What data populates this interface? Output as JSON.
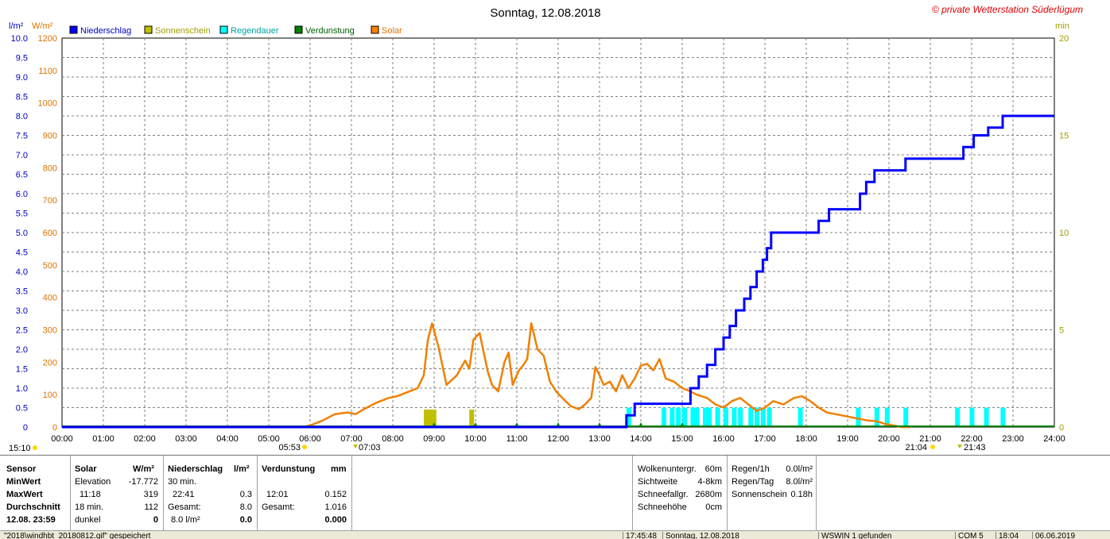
{
  "header": {
    "title": "Sonntag, 12.08.2018",
    "copyright": "© private Wetterstation Süderlügum",
    "unit_left1": "l/m²",
    "unit_left2": "W/m²",
    "unit_right": "min"
  },
  "legend": [
    {
      "label": "Niederschlag",
      "color": "#0000ff",
      "text_color": "#0000c0"
    },
    {
      "label": "Sonnenschein",
      "color": "#c0c000",
      "text_color": "#a0a000"
    },
    {
      "label": "Regendauer",
      "color": "#00ffff",
      "text_color": "#00a0a0"
    },
    {
      "label": "Verdunstung",
      "color": "#008000",
      "text_color": "#006000"
    },
    {
      "label": "Solar",
      "color": "#ff8000",
      "text_color": "#e07000"
    }
  ],
  "colors": {
    "precip": "#0000ff",
    "solar": "#f08000",
    "sunshine": "#c0c000",
    "rain_dur": "#00ffff",
    "evap": "#008000",
    "grid": "#808080",
    "axis_left1": "#0000c0",
    "axis_left2": "#e07000",
    "axis_right": "#a0a000"
  },
  "chart_data": {
    "type": "line",
    "title": "Sonntag, 12.08.2018",
    "x_ticks": [
      "00:00",
      "01:00",
      "02:00",
      "03:00",
      "04:00",
      "05:00",
      "06:00",
      "07:00",
      "08:00",
      "09:00",
      "10:00",
      "11:00",
      "12:00",
      "13:00",
      "14:00",
      "15:00",
      "16:00",
      "17:00",
      "18:00",
      "19:00",
      "20:00",
      "21:00",
      "22:00",
      "23:00",
      "24:00"
    ],
    "xlim": [
      0,
      24
    ],
    "y_left1": {
      "unit": "l/m²",
      "range": [
        0,
        10
      ],
      "ticks": [
        "0",
        "0.5",
        "1.0",
        "1.5",
        "2.0",
        "2.5",
        "3.0",
        "3.5",
        "4.0",
        "4.5",
        "5.0",
        "5.5",
        "6.0",
        "6.5",
        "7.0",
        "7.5",
        "8.0",
        "8.5",
        "9.0",
        "9.5",
        "10.0"
      ]
    },
    "y_left2": {
      "unit": "W/m²",
      "range": [
        0,
        1200
      ],
      "ticks": [
        "0",
        "100",
        "200",
        "300",
        "400",
        "500",
        "600",
        "700",
        "800",
        "900",
        "1000",
        "1100",
        "1200"
      ]
    },
    "y_right": {
      "unit": "min",
      "range": [
        0,
        20
      ],
      "ticks": [
        "0",
        "5",
        "10",
        "15",
        "20"
      ]
    },
    "grid": true,
    "legend_placement": "top-left",
    "series": [
      {
        "name": "Niederschlag",
        "axis": "left1",
        "step": true,
        "x": [
          0,
          13.65,
          13.85,
          15.2,
          15.4,
          15.6,
          15.8,
          16.0,
          16.15,
          16.3,
          16.5,
          16.65,
          16.8,
          16.95,
          17.05,
          17.15,
          18.3,
          18.55,
          19.3,
          19.45,
          19.65,
          20.4,
          21.8,
          22.05,
          22.4,
          22.75,
          24
        ],
        "y": [
          0,
          0.3,
          0.6,
          1.0,
          1.3,
          1.6,
          2.0,
          2.3,
          2.6,
          3.0,
          3.3,
          3.6,
          4.0,
          4.3,
          4.6,
          5.0,
          5.3,
          5.6,
          6.0,
          6.3,
          6.6,
          6.9,
          7.2,
          7.5,
          7.7,
          8.0,
          8.0
        ]
      },
      {
        "name": "Solar",
        "axis": "left2",
        "x": [
          5.8,
          6.0,
          6.3,
          6.6,
          6.9,
          7.1,
          7.3,
          7.6,
          7.9,
          8.1,
          8.4,
          8.6,
          8.75,
          8.85,
          8.95,
          9.1,
          9.3,
          9.55,
          9.75,
          9.85,
          9.95,
          10.1,
          10.2,
          10.3,
          10.4,
          10.55,
          10.7,
          10.8,
          10.9,
          11.05,
          11.15,
          11.25,
          11.35,
          11.5,
          11.65,
          11.8,
          11.95,
          12.1,
          12.3,
          12.5,
          12.65,
          12.8,
          12.9,
          13.0,
          13.1,
          13.25,
          13.4,
          13.55,
          13.7,
          13.85,
          14.0,
          14.15,
          14.3,
          14.45,
          14.6,
          14.8,
          15.0,
          15.2,
          15.35,
          15.6,
          15.8,
          16.0,
          16.2,
          16.4,
          16.6,
          16.8,
          17.0,
          17.2,
          17.45,
          17.7,
          17.9,
          18.1,
          18.3,
          18.5,
          18.7,
          18.9,
          19.1,
          19.3,
          19.5,
          19.7,
          19.9,
          20.1,
          20.3,
          20.5
        ],
        "y": [
          0,
          5,
          20,
          40,
          45,
          40,
          55,
          75,
          90,
          95,
          110,
          120,
          160,
          270,
          320,
          250,
          130,
          160,
          205,
          180,
          270,
          290,
          230,
          170,
          130,
          110,
          200,
          230,
          130,
          175,
          190,
          210,
          320,
          240,
          220,
          140,
          110,
          90,
          65,
          55,
          70,
          90,
          185,
          160,
          130,
          140,
          110,
          160,
          120,
          150,
          190,
          195,
          175,
          210,
          150,
          140,
          120,
          110,
          100,
          90,
          70,
          60,
          80,
          90,
          70,
          50,
          60,
          80,
          70,
          90,
          95,
          80,
          60,
          45,
          40,
          35,
          30,
          25,
          20,
          18,
          10,
          5,
          0,
          0
        ]
      },
      {
        "name": "Sonnenschein",
        "axis": "right",
        "x": [
          8.75,
          8.9,
          9.85
        ],
        "y": [
          0.9,
          0.9,
          0.9
        ]
      },
      {
        "name": "Regendauer",
        "axis": "right",
        "x": [
          13.65,
          14.5,
          14.7,
          14.85,
          15.0,
          15.2,
          15.3,
          15.5,
          15.6,
          15.8,
          16.0,
          16.2,
          16.35,
          16.6,
          16.75,
          16.9,
          17.05,
          17.8,
          19.2,
          19.65,
          19.9,
          20.35,
          21.6,
          21.95,
          22.3,
          22.7
        ],
        "y": [
          1,
          1,
          1,
          1,
          1,
          1,
          1,
          1,
          1,
          1,
          1,
          1,
          1,
          1,
          1,
          1,
          1,
          1,
          1,
          1,
          1,
          1,
          1,
          1,
          1,
          1
        ]
      },
      {
        "name": "Verdunstung",
        "axis": "left1",
        "x": [
          9.0,
          10.0,
          11.0,
          12.0,
          13.0,
          14.0,
          15.0
        ],
        "y": [
          0.02,
          0.02,
          0.02,
          0.02,
          0.02,
          0.02,
          0.02
        ]
      }
    ],
    "annotations": {
      "left_time": "15:10",
      "sunrise": "05:53",
      "sunrise_marker": "07:03",
      "sunset": "21:04",
      "sunset_marker": "21:43"
    }
  },
  "stats": {
    "col_sensor": {
      "header": "Sensor",
      "rows": [
        "MinWert",
        "MaxWert",
        "Durchschnitt",
        "12.08. 23:59"
      ]
    },
    "solar": {
      "header": "Solar",
      "unit": "W/m²",
      "rows": [
        [
          "Elevation",
          "-17.772"
        ],
        [
          "11:18",
          "319"
        ],
        [
          "18 min.",
          "112"
        ],
        [
          "dunkel",
          "0"
        ]
      ]
    },
    "precip": {
      "header": "Niederschlag",
      "unit": "l/m²",
      "rows": [
        [
          "30 min.",
          ""
        ],
        [
          "22:41",
          "0.3"
        ],
        [
          "Gesamt:",
          "8.0"
        ],
        [
          "8.0 l/m²",
          "0.0"
        ]
      ]
    },
    "evap": {
      "header": "Verdunstung",
      "unit": "mm",
      "rows": [
        [
          "",
          ""
        ],
        [
          "12:01",
          "0.152"
        ],
        [
          "Gesamt:",
          "1.016"
        ],
        [
          "",
          "0.000"
        ]
      ]
    },
    "extra1": [
      [
        "Wolkenuntergr.",
        "60m"
      ],
      [
        "Sichtweite",
        "4-8km"
      ],
      [
        "Schneefallgr.",
        "2680m"
      ],
      [
        "Schneehöhe",
        "0cm"
      ]
    ],
    "extra2": [
      [
        "Regen/1h",
        "0.0l/m²"
      ],
      [
        "Regen/Tag",
        "8.0l/m²"
      ],
      [
        "Sonnenschein",
        "0.18h"
      ]
    ]
  },
  "status": {
    "message": "\"2018\\windhbt_20180812.gif\" gespeichert",
    "time": "17:45:48",
    "date": "Sonntag, 12.08.2018",
    "device": "WSWIN 1 gefunden",
    "port": "COM 5",
    "time2": "18:04",
    "date2": "06.06.2019"
  }
}
